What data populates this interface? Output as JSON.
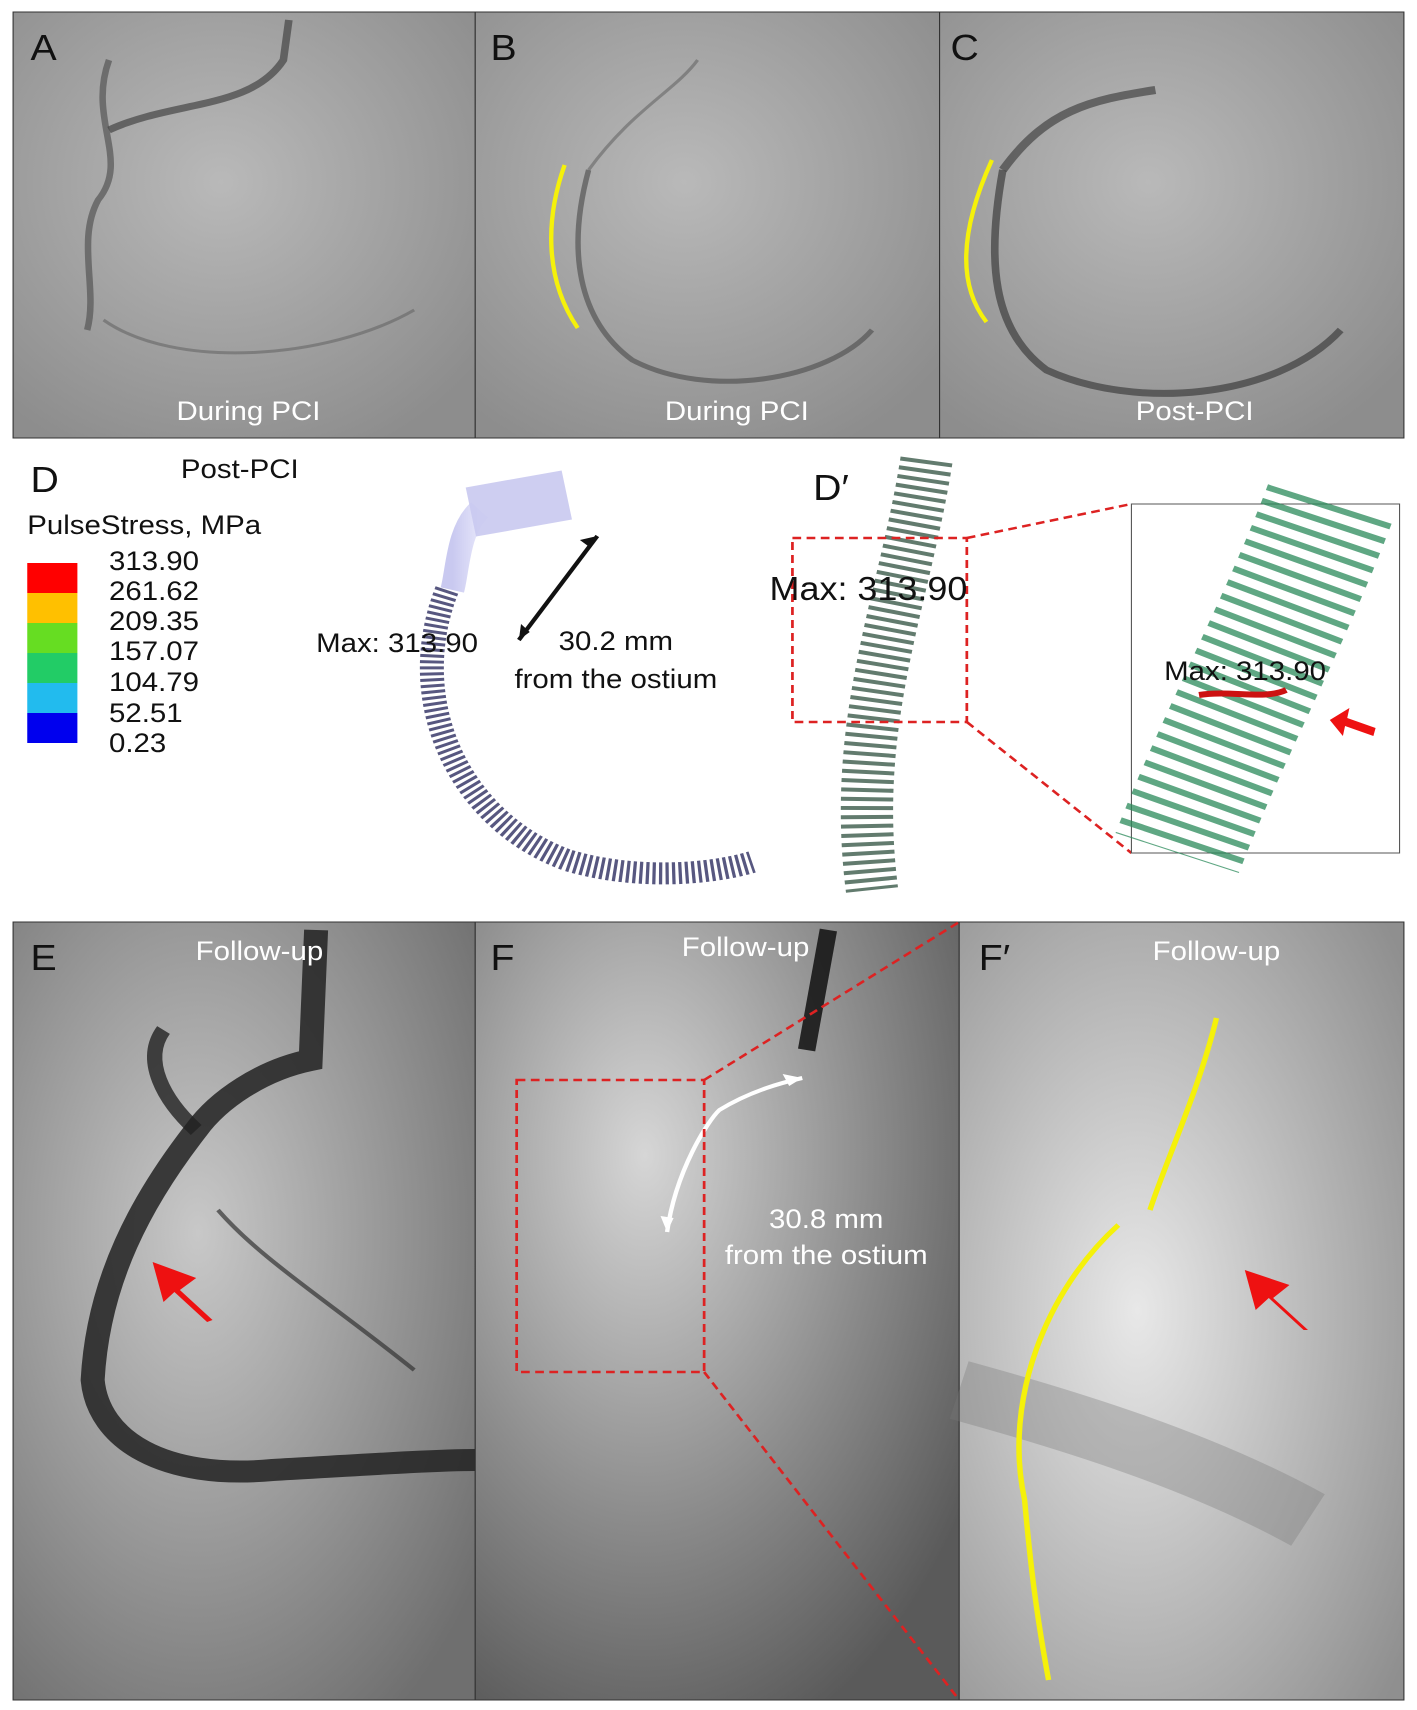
{
  "panels": [
    {
      "label": "A",
      "caption": "During PCI"
    },
    {
      "label": "B",
      "caption": "During PCI"
    },
    {
      "label": "C",
      "caption": "Post-PCI"
    },
    {
      "label": "D",
      "caption": "Post-PCI",
      "legend": {
        "title": "PulseStress, MPa",
        "values": [
          "313.90",
          "261.62",
          "209.35",
          "157.07",
          "104.79",
          "52.51",
          "0.23"
        ]
      },
      "max_label": "Max: 313.90",
      "distance": [
        "30.2 mm",
        "from the ostium"
      ]
    },
    {
      "label": "D′",
      "max_label": "Max: 313.90",
      "inset_max_label": "Max: 313.90"
    },
    {
      "label": "E",
      "caption": "Follow-up"
    },
    {
      "label": "F",
      "caption": "Follow-up",
      "distance": [
        "30.8 mm",
        "from the ostium"
      ]
    },
    {
      "label": "F′",
      "caption": "Follow-up"
    }
  ]
}
